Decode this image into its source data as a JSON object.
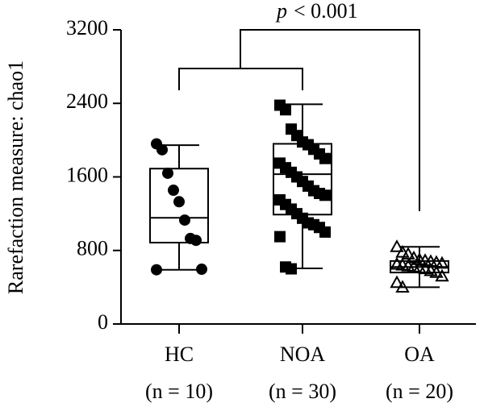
{
  "chart_data": {
    "type": "box",
    "ylabel": "Rarefaction measure: chao1",
    "annotation": {
      "symbol": "p",
      "text": "< 0.001"
    },
    "categories": [
      "HC",
      "NOA",
      "OA"
    ],
    "category_notes": [
      "(n = 10)",
      "(n = 30)",
      "(n = 20)"
    ],
    "markers": [
      "circle",
      "square",
      "triangle"
    ],
    "color": "#000000",
    "ylim": [
      0,
      3200
    ],
    "yticks": [
      0,
      800,
      1600,
      2400,
      3200
    ],
    "boxes": [
      {
        "min": 590,
        "q1": 885,
        "median": 1155,
        "q3": 1690,
        "max": 1945,
        "points": [
          1960,
          1895,
          1640,
          1455,
          1330,
          1130,
          930,
          910,
          596,
          590
        ]
      },
      {
        "min": 605,
        "q1": 1190,
        "median": 1630,
        "q3": 1960,
        "max": 2390,
        "points": [
          2380,
          2330,
          2120,
          2050,
          1980,
          1950,
          1900,
          1850,
          1800,
          1750,
          1700,
          1650,
          1600,
          1550,
          1500,
          1450,
          1420,
          1400,
          1350,
          1300,
          1250,
          1200,
          1150,
          1100,
          1080,
          1050,
          1000,
          950,
          620,
          600
        ]
      },
      {
        "min": 400,
        "q1": 560,
        "median": 620,
        "q3": 685,
        "max": 840,
        "points": [
          840,
          780,
          760,
          720,
          700,
          690,
          680,
          670,
          660,
          650,
          640,
          630,
          620,
          610,
          600,
          580,
          560,
          520,
          450,
          400
        ]
      }
    ]
  }
}
